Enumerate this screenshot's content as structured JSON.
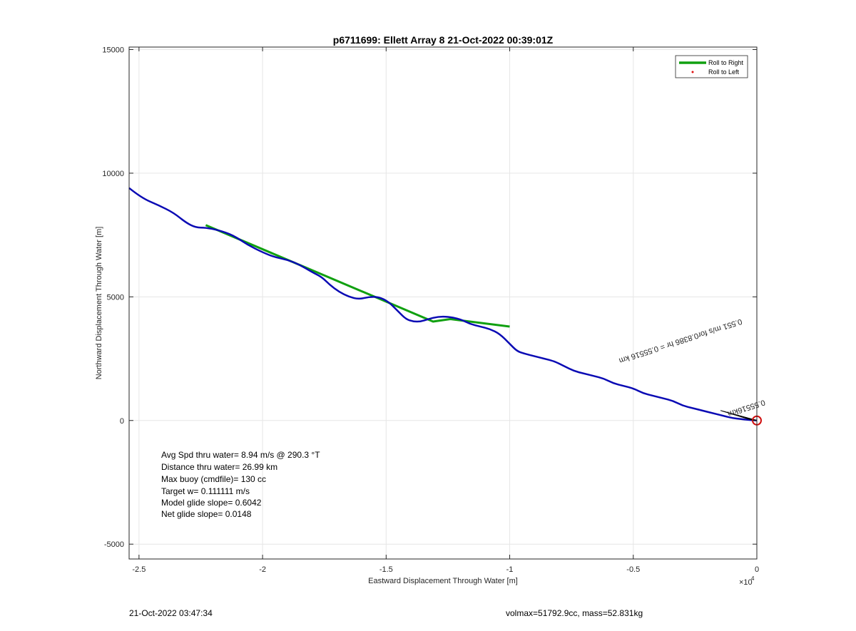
{
  "chart_data": {
    "type": "line",
    "title": "p6711699: Ellett Array 8 21-Oct-2022 00:39:01Z",
    "xlabel": "Eastward Displacement Through Water [m]",
    "ylabel": "Northward Displacement Through Water [m]",
    "x_exponent_label": "×10",
    "x_exponent_power": "4",
    "xlim": [
      -25400,
      0
    ],
    "ylim": [
      -5600,
      15100
    ],
    "x_ticks": [
      -25000,
      -20000,
      -15000,
      -10000,
      -5000,
      0
    ],
    "x_tick_labels": [
      "-2.5",
      "-2",
      "-1.5",
      "-1",
      "-0.5",
      "0"
    ],
    "y_ticks": [
      -5000,
      0,
      5000,
      10000,
      15000
    ],
    "y_tick_labels": [
      "-5000",
      "0",
      "5000",
      "10000",
      "15000"
    ],
    "grid": true,
    "legend_position": "top-right",
    "colors": {
      "roll_right": "#10a010",
      "roll_left": "#e01010",
      "track": "#0a0ab4",
      "marker": "#d01010",
      "labels": "#000000"
    },
    "series": [
      {
        "name": "Roll to Right",
        "style": "thick-line",
        "x": [
          -22300,
          -13100,
          -12400,
          -10000
        ],
        "y": [
          7900,
          4000,
          4100,
          3800
        ]
      },
      {
        "name": "Roll to Left",
        "style": "dot",
        "x": [],
        "y": []
      },
      {
        "name": "",
        "style": "track",
        "x": [
          -25400,
          -24900,
          -24200,
          -23600,
          -23100,
          -22700,
          -22300,
          -21800,
          -21200,
          -20600,
          -20000,
          -19500,
          -19000,
          -18500,
          -18000,
          -17600,
          -17300,
          -16900,
          -16500,
          -16100,
          -15700,
          -15300,
          -14900,
          -14500,
          -14200,
          -13900,
          -13600,
          -13300,
          -12900,
          -12500,
          -12000,
          -11600,
          -11200,
          -10800,
          -10400,
          -10000,
          -9700,
          -9400,
          -9000,
          -8600,
          -8200,
          -7800,
          -7400,
          -7000,
          -6600,
          -6200,
          -5800,
          -5400,
          -5000,
          -4600,
          -4200,
          -3800,
          -3400,
          -3000,
          -2600,
          -2200,
          -1800,
          -1400,
          -1000,
          -600,
          -300,
          0
        ],
        "y": [
          9400,
          9000,
          8700,
          8400,
          8000,
          7800,
          7800,
          7700,
          7500,
          7100,
          6800,
          6600,
          6500,
          6300,
          6000,
          5800,
          5500,
          5200,
          5000,
          4900,
          5000,
          5000,
          4800,
          4400,
          4100,
          4000,
          4000,
          4100,
          4200,
          4200,
          4100,
          3900,
          3800,
          3700,
          3500,
          3100,
          2800,
          2700,
          2600,
          2500,
          2400,
          2200,
          2000,
          1900,
          1800,
          1700,
          1500,
          1400,
          1300,
          1100,
          1000,
          900,
          800,
          600,
          500,
          400,
          300,
          200,
          100,
          50,
          20,
          0
        ]
      }
    ],
    "start_marker": {
      "x": 0,
      "y": 0
    },
    "track_annotations": [
      {
        "text": "0.551 m/s for0.8386 hr = 0.55516 km",
        "x": -5600,
        "y": 2500,
        "rotation_deg": 162
      },
      {
        "text": "0.55516km",
        "x": -1200,
        "y": 350,
        "rotation_deg": 162
      }
    ],
    "stats_lines": [
      "Avg Spd thru water=  8.94 m/s @ 290.3 °T",
      "Distance thru water= 26.99 km",
      "Max buoy (cmdfile)= 130 cc",
      "Target w= 0.111111 m/s",
      "Model glide slope= 0.6042",
      "Net glide slope= 0.0148"
    ]
  },
  "footer": {
    "timestamp": "21-Oct-2022 03:47:34",
    "volmax_mass": "volmax=51792.9cc, mass=52.831kg"
  }
}
